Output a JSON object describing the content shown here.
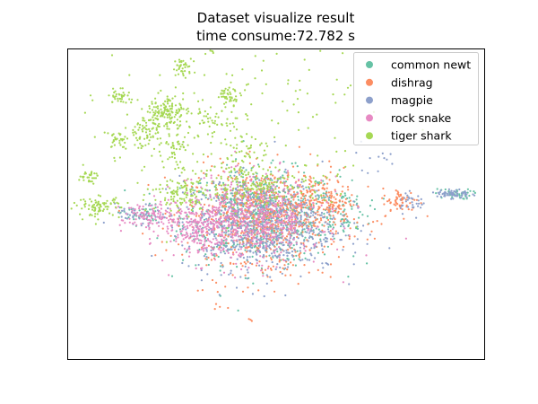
{
  "chart_data": {
    "type": "scatter",
    "title": "Dataset visualize result",
    "subtitle": "time consume:72.782 s",
    "xlabel": "",
    "ylabel": "",
    "xlim": [
      -40,
      40
    ],
    "ylim": [
      -30,
      30
    ],
    "axis_ticks_visible": false,
    "grid": false,
    "legend_placement": "top-right",
    "marker_size_px": 1.1,
    "series": [
      {
        "name": "common newt",
        "color": "#66c2a5",
        "clusters": [
          {
            "cx": -3,
            "cy": -2.5,
            "sx": 7.5,
            "sy": 4.5,
            "n": 700
          },
          {
            "cx": 13,
            "cy": -1.2,
            "sx": 2.5,
            "sy": 2.5,
            "n": 60
          },
          {
            "cx": 34,
            "cy": 2,
            "sx": 1.8,
            "sy": 0.5,
            "n": 40
          },
          {
            "cx": 44.5,
            "cy": 2.5,
            "sx": 0.6,
            "sy": 0.3,
            "n": 20
          },
          {
            "cx": -26,
            "cy": -2,
            "sx": 2,
            "sy": 1,
            "n": 40
          }
        ]
      },
      {
        "name": "dishrag",
        "color": "#fc8d62",
        "clusters": [
          {
            "cx": -2,
            "cy": -2,
            "sx": 7.5,
            "sy": 4.5,
            "n": 750
          },
          {
            "cx": 9,
            "cy": 0.5,
            "sx": 3,
            "sy": 2,
            "n": 120
          },
          {
            "cx": 24,
            "cy": 0.5,
            "sx": 1.8,
            "sy": 1.3,
            "n": 60
          },
          {
            "cx": -2,
            "cy": -12,
            "sx": 7,
            "sy": 3,
            "n": 45
          },
          {
            "cx": -11,
            "cy": -20,
            "sx": 1,
            "sy": 0.5,
            "n": 4
          },
          {
            "cx": -5,
            "cy": -22.5,
            "sx": 0.5,
            "sy": 0.3,
            "n": 3
          }
        ]
      },
      {
        "name": "magpie",
        "color": "#8da0cb",
        "clusters": [
          {
            "cx": -3,
            "cy": -4,
            "sx": 7.5,
            "sy": 4.5,
            "n": 750
          },
          {
            "cx": 34,
            "cy": 2,
            "sx": 1.6,
            "sy": 0.5,
            "n": 60
          },
          {
            "cx": 26,
            "cy": 0.5,
            "sx": 1.5,
            "sy": 1,
            "n": 30
          },
          {
            "cx": 20,
            "cy": 9,
            "sx": 2.5,
            "sy": 1.5,
            "n": 12
          },
          {
            "cx": -26,
            "cy": -2.5,
            "sx": 2.5,
            "sy": 1.2,
            "n": 50
          }
        ]
      },
      {
        "name": "rock snake",
        "color": "#e78ac3",
        "clusters": [
          {
            "cx": -5,
            "cy": -3,
            "sx": 7,
            "sy": 4,
            "n": 650
          },
          {
            "cx": -24,
            "cy": -2.5,
            "sx": 3,
            "sy": 1.5,
            "n": 120
          },
          {
            "cx": -14,
            "cy": -5,
            "sx": 3,
            "sy": 2,
            "n": 150
          }
        ]
      },
      {
        "name": "tiger shark",
        "color": "#a6d854",
        "clusters": [
          {
            "cx": -12,
            "cy": 31,
            "sx": 1.2,
            "sy": 0.8,
            "n": 60
          },
          {
            "cx": -18,
            "cy": 26.5,
            "sx": 0.9,
            "sy": 0.9,
            "n": 35
          },
          {
            "cx": -9,
            "cy": 21,
            "sx": 1.2,
            "sy": 0.8,
            "n": 45
          },
          {
            "cx": -30,
            "cy": 21,
            "sx": 1,
            "sy": 0.8,
            "n": 35
          },
          {
            "cx": -21,
            "cy": 18,
            "sx": 2,
            "sy": 1.5,
            "n": 120
          },
          {
            "cx": -30.5,
            "cy": 12.5,
            "sx": 1,
            "sy": 0.8,
            "n": 30
          },
          {
            "cx": -36,
            "cy": 5.5,
            "sx": 0.9,
            "sy": 0.7,
            "n": 30
          },
          {
            "cx": -25,
            "cy": 14,
            "sx": 2,
            "sy": 1.5,
            "n": 70
          },
          {
            "cx": -20,
            "cy": 11,
            "sx": 2,
            "sy": 1.2,
            "n": 40
          },
          {
            "cx": -13,
            "cy": 16,
            "sx": 2,
            "sy": 1.5,
            "n": 35
          },
          {
            "cx": -6,
            "cy": 10,
            "sx": 2,
            "sy": 1.5,
            "n": 35
          },
          {
            "cx": -34,
            "cy": -0.5,
            "sx": 2,
            "sy": 1,
            "n": 80
          },
          {
            "cx": -18,
            "cy": 1.5,
            "sx": 3,
            "sy": 1.5,
            "n": 80
          },
          {
            "cx": -5,
            "cy": 4,
            "sx": 8,
            "sy": 2,
            "n": 200
          },
          {
            "cx": -10,
            "cy": 15,
            "sx": 14,
            "sy": 8,
            "n": 180
          }
        ]
      }
    ]
  }
}
